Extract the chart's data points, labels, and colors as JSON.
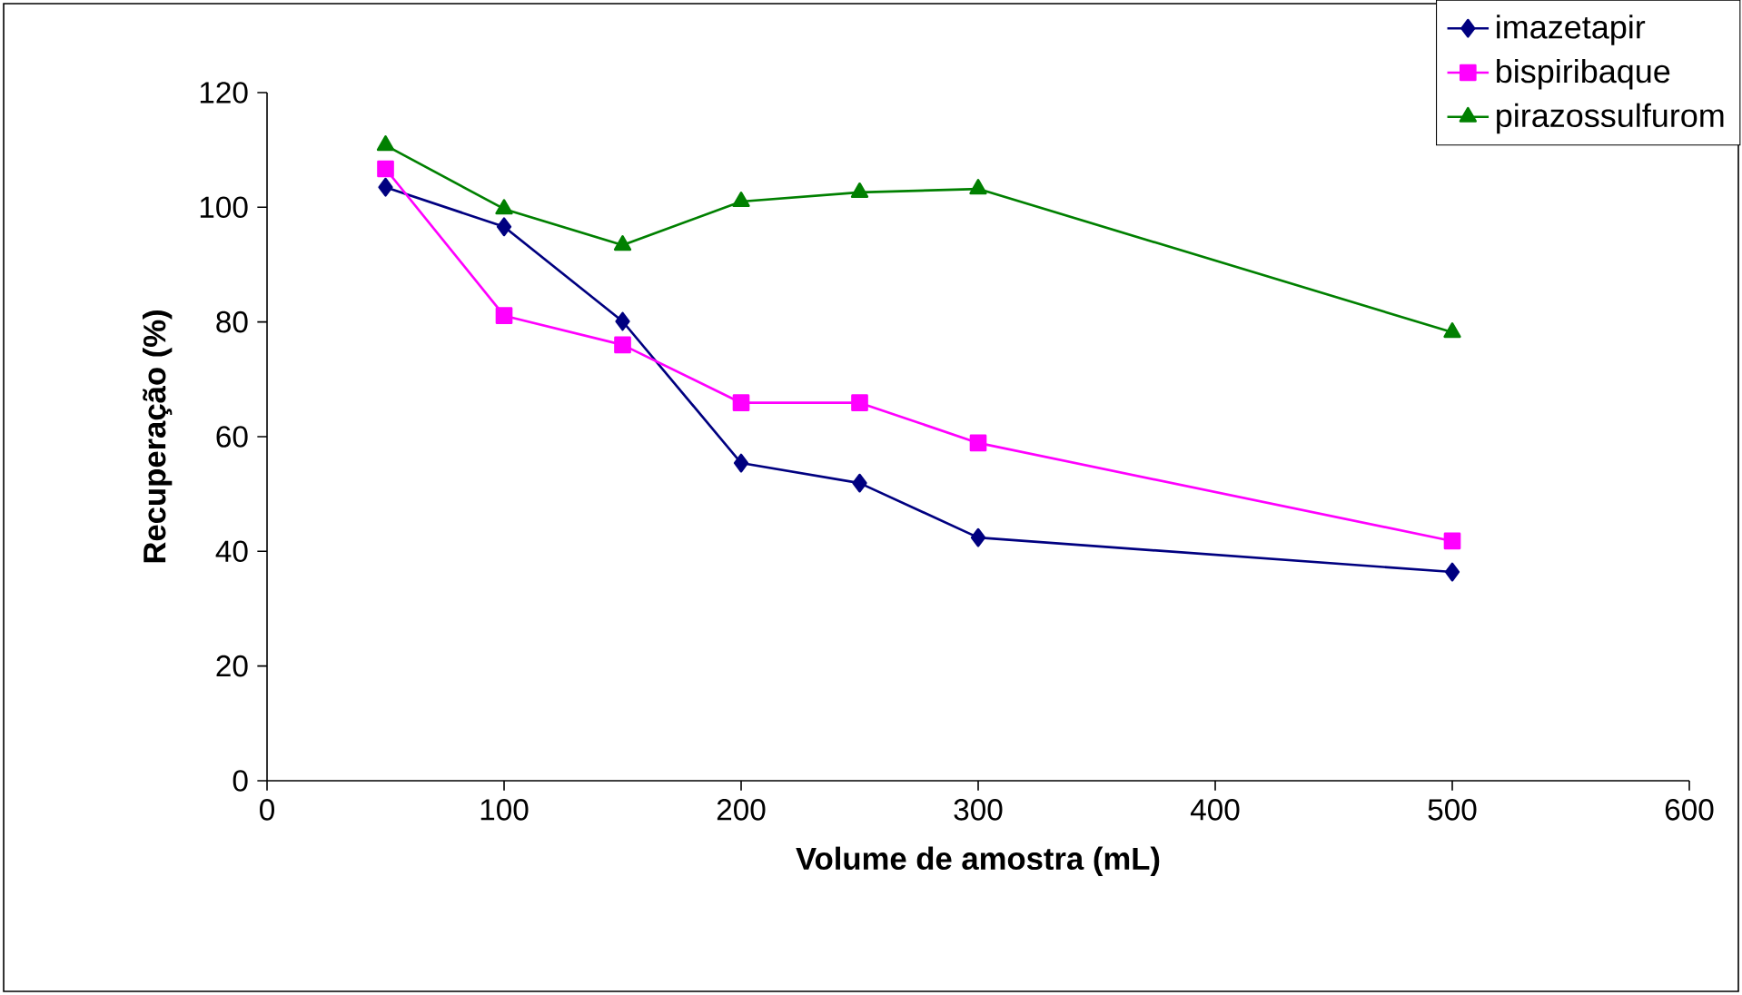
{
  "chart_data": {
    "type": "line",
    "xlabel": "Volume de amostra (mL)",
    "ylabel": "Recuperação (%)",
    "x": [
      50,
      100,
      150,
      200,
      250,
      300,
      500
    ],
    "series": [
      {
        "name": "imazetapir",
        "color": "#000080",
        "marker": "diamond",
        "values": [
          103.5,
          96.6,
          80.1,
          55.4,
          51.9,
          42.4,
          36.4
        ]
      },
      {
        "name": "bispiribaque",
        "color": "#ff00ff",
        "marker": "square",
        "values": [
          106.7,
          81.1,
          76,
          65.9,
          65.9,
          58.9,
          41.8
        ]
      },
      {
        "name": "pirazossulfurom",
        "color": "#008000",
        "marker": "triangle",
        "values": [
          110.8,
          99.7,
          93.4,
          101,
          102.6,
          103.2,
          78.2
        ]
      }
    ],
    "xlim": [
      0,
      600
    ],
    "xticks": [
      0,
      100,
      200,
      300,
      400,
      500,
      600
    ],
    "ylim": [
      0,
      120
    ],
    "yticks": [
      0,
      20,
      40,
      60,
      80,
      100,
      120
    ],
    "grid": false,
    "legend": "top right",
    "line_style": "solid"
  }
}
